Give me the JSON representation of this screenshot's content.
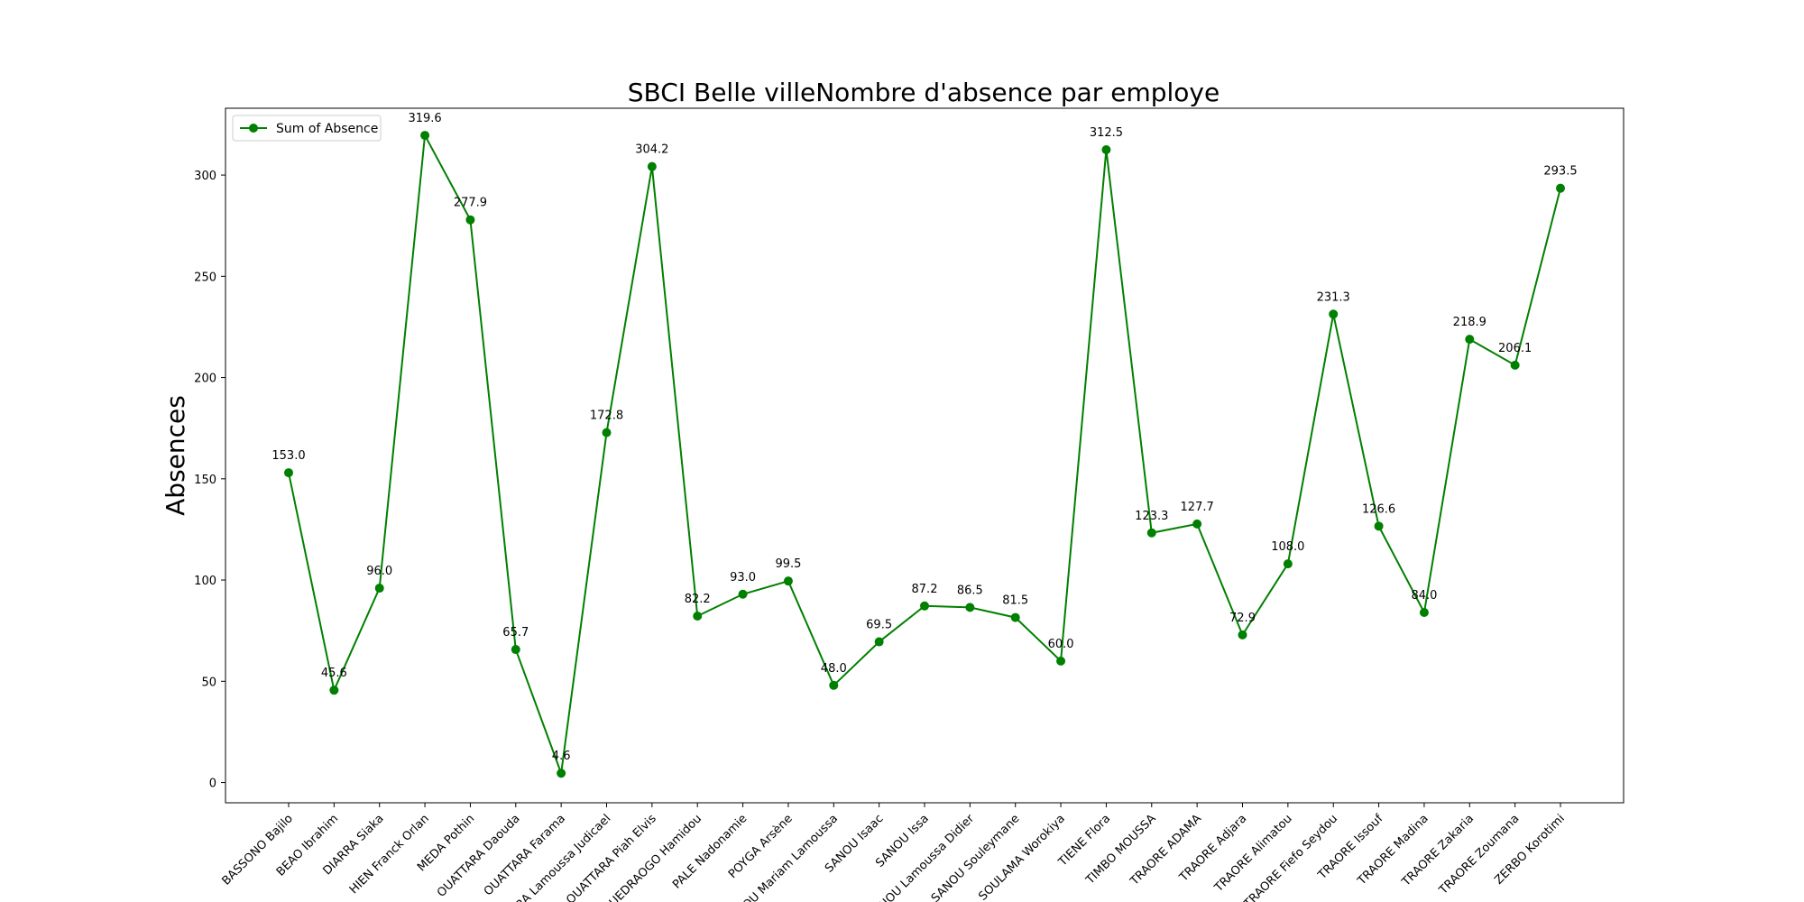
{
  "chart_data": {
    "type": "line",
    "title": "SBCI Belle villeNombre d'absence par employe",
    "xlabel": "",
    "ylabel": "Absences",
    "ylim": [
      -10,
      333
    ],
    "yticks": [
      0,
      50,
      100,
      150,
      200,
      250,
      300
    ],
    "grid": false,
    "legend_position": "upper-left",
    "color": "#008000",
    "categories": [
      "BASSONO Bajilo",
      "BEAO Ibrahim",
      "DIARRA Siaka",
      "HIEN Franck Orlan",
      "MEDA Pothin",
      "OUATTARA Daouda",
      "OUATTARA Farama",
      "OUATTARA Lamoussa Judicael",
      "OUATTARA Piah Elvis",
      "OUEDRAOGO Hamidou",
      "PALE Nadonamie",
      "POYGA Arsène",
      "SANOU Mariam Lamoussa",
      "SANOU Isaac",
      "SANOU Issa",
      "SANOU Lamoussa Didier",
      "SANOU Souleymane",
      "SOULAMA Worokiya",
      "TIENE Flora",
      "TIMBO MOUSSA",
      "TRAORE ADAMA",
      "TRAORE Adjara",
      "TRAORE Alimatou",
      "TRAORE Fiefo Seydou",
      "TRAORE Issouf",
      "TRAORE Madina",
      "TRAORE Zakaria",
      "TRAORE Zoumana",
      "ZERBO Korotimi"
    ],
    "series": [
      {
        "name": "Sum of Absence",
        "values": [
          153.0,
          45.6,
          96.0,
          319.6,
          277.9,
          65.7,
          4.6,
          172.8,
          304.2,
          82.2,
          93.0,
          99.5,
          48.0,
          69.5,
          87.2,
          86.5,
          81.5,
          60.0,
          312.5,
          123.3,
          127.7,
          72.9,
          108.0,
          231.3,
          126.6,
          84.0,
          218.9,
          206.1,
          293.5
        ],
        "labels": [
          "153.0",
          "45.6",
          "96.0",
          "319.6",
          "277.9",
          "65.7",
          "4.6",
          "172.8",
          "304.2",
          "82.2",
          "93.0",
          "99.5",
          "48.0",
          "69.5",
          "87.2",
          "86.5",
          "81.5",
          "60.0",
          "312.5",
          "123.3",
          "127.7",
          "72.9",
          "108.0",
          "231.3",
          "126.6",
          "84.0",
          "218.9",
          "206.1",
          "293.5"
        ]
      }
    ]
  }
}
